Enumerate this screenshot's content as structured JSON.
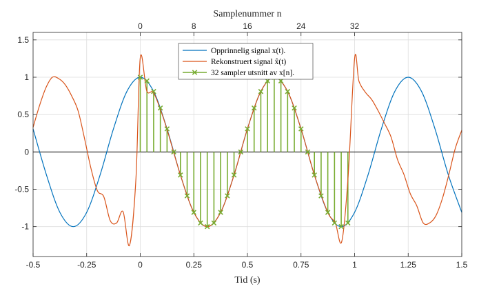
{
  "colors": {
    "original": "#0072BD",
    "reconstructed": "#D95319",
    "samples": "#77AC30",
    "grid": "#dddddd",
    "axis": "#262626"
  },
  "chart_data": {
    "type": "line",
    "title": "",
    "xlabel": "Tid (s)",
    "top_xlabel": "Samplenummer n",
    "ylabel": "",
    "xlim": [
      -0.5,
      1.5
    ],
    "ylim": [
      -1.4,
      1.6
    ],
    "grid": true,
    "legend_position": "top-center",
    "x_ticks": [
      -0.5,
      -0.25,
      0,
      0.25,
      0.5,
      0.75,
      1,
      1.25,
      1.5
    ],
    "x_tick_labels": [
      "-0.5",
      "-0.25",
      "0",
      "0.25",
      "0.5",
      "0.75",
      "1",
      "1.25",
      "1.5"
    ],
    "y_ticks": [
      -1,
      -0.5,
      0,
      0.5,
      1,
      1.5
    ],
    "y_tick_labels": [
      "-1",
      "-0.5",
      "0",
      "0.5",
      "1",
      "1.5"
    ],
    "top_ticks": [
      0,
      8,
      16,
      24,
      32
    ],
    "top_tick_labels": [
      "0",
      "8",
      "16",
      "24",
      "32"
    ],
    "sample_interval": 0.03125,
    "legend": [
      "Opprinnelig signal x(t).",
      "Rekonstruert signal x̂(t)",
      "32 sampler utsnitt av x[n]."
    ],
    "series": [
      {
        "name": "Opprinnelig signal x(t).",
        "x": [
          -0.5,
          -0.4375,
          -0.375,
          -0.3125,
          -0.25,
          -0.1875,
          -0.125,
          -0.0625,
          0,
          0.0625,
          0.125,
          0.1875,
          0.25,
          0.3125,
          0.375,
          0.4375,
          0.5,
          0.5625,
          0.625,
          0.6875,
          0.75,
          0.8125,
          0.875,
          0.9375,
          1,
          1.0625,
          1.125,
          1.1875,
          1.25,
          1.3125,
          1.375,
          1.4375,
          1.5
        ],
        "y": [
          0.309,
          -0.309,
          -0.809,
          -1,
          -0.809,
          -0.309,
          0.309,
          0.809,
          1,
          0.809,
          0.309,
          -0.309,
          -0.809,
          -1,
          -0.809,
          -0.309,
          0.309,
          0.809,
          1,
          0.809,
          0.309,
          -0.309,
          -0.809,
          -1,
          -0.809,
          -0.309,
          0.309,
          0.809,
          1,
          0.809,
          0.309,
          -0.309,
          -0.809
        ]
      },
      {
        "name": "Rekonstruert signal x̂(t)",
        "x": [
          -0.5,
          -0.47,
          -0.44,
          -0.41,
          -0.38,
          -0.35,
          -0.32,
          -0.29,
          -0.26,
          -0.23,
          -0.2,
          -0.17,
          -0.14,
          -0.11,
          -0.08,
          -0.05,
          -0.02,
          0,
          0.03,
          0.06,
          0.09,
          0.125,
          0.1875,
          0.25,
          0.3125,
          0.375,
          0.4375,
          0.5,
          0.5625,
          0.625,
          0.6875,
          0.75,
          0.8125,
          0.875,
          0.91,
          0.94,
          0.97,
          1.0,
          1.02,
          1.05,
          1.08,
          1.11,
          1.14,
          1.17,
          1.2,
          1.23,
          1.26,
          1.29,
          1.32,
          1.35,
          1.38,
          1.41,
          1.44,
          1.47,
          1.5
        ],
        "y": [
          0.33,
          0.62,
          0.86,
          1.0,
          0.98,
          0.9,
          0.75,
          0.55,
          0.18,
          -0.22,
          -0.52,
          -0.6,
          -0.92,
          -0.95,
          -0.8,
          -1.25,
          -0.35,
          1.26,
          0.82,
          0.8,
          0.6,
          0.3,
          -0.31,
          -0.81,
          -1.0,
          -0.81,
          -0.31,
          0.31,
          0.81,
          1.0,
          0.81,
          0.31,
          -0.31,
          -0.81,
          -0.95,
          -1.2,
          -0.32,
          1.25,
          0.95,
          0.8,
          0.7,
          0.55,
          0.38,
          0.2,
          -0.1,
          -0.3,
          -0.56,
          -0.72,
          -0.95,
          -0.95,
          -0.85,
          -0.62,
          -0.3,
          0.05,
          0.29
        ]
      },
      {
        "name": "32 sampler utsnitt av x[n].",
        "x": [
          0,
          0.03125,
          0.0625,
          0.09375,
          0.125,
          0.15625,
          0.1875,
          0.21875,
          0.25,
          0.28125,
          0.3125,
          0.34375,
          0.375,
          0.40625,
          0.4375,
          0.46875,
          0.5,
          0.53125,
          0.5625,
          0.59375,
          0.625,
          0.65625,
          0.6875,
          0.71875,
          0.75,
          0.78125,
          0.8125,
          0.84375,
          0.875,
          0.90625,
          0.9375,
          0.96875
        ],
        "y": [
          1,
          0.951,
          0.809,
          0.588,
          0.309,
          0,
          -0.309,
          -0.588,
          -0.809,
          -0.951,
          -1,
          -0.951,
          -0.809,
          -0.588,
          -0.309,
          0,
          0.309,
          0.588,
          0.809,
          0.951,
          1,
          0.951,
          0.809,
          0.588,
          0.309,
          0,
          -0.309,
          -0.588,
          -0.809,
          -0.951,
          -1,
          -0.951
        ]
      }
    ]
  }
}
